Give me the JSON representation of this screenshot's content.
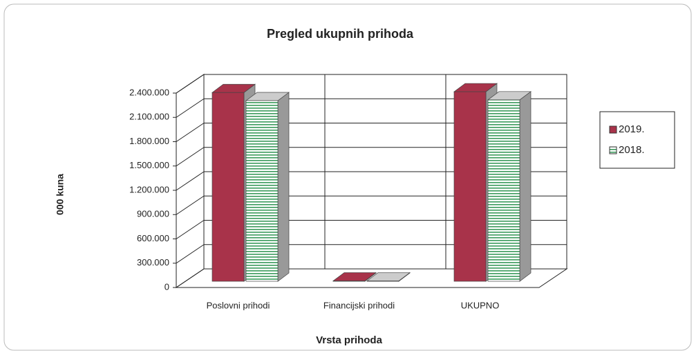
{
  "chart_data": {
    "type": "bar3d",
    "title": "Pregled ukupnih prihoda",
    "ylabel": "000 kuna",
    "xlabel": "Vrsta prihoda",
    "categories": [
      "Poslovni prihodi",
      "Financijski prihodi",
      "UKUPNO"
    ],
    "series": [
      {
        "name": "2019.",
        "color": "#a8334a",
        "values": [
          2330000,
          5000,
          2340000
        ]
      },
      {
        "name": "2018.",
        "color": "#3a9a5b",
        "pattern": "stripes",
        "values": [
          2230000,
          5000,
          2240000
        ]
      }
    ],
    "ylim": [
      0,
      2400000
    ],
    "yticks": [
      0,
      {
        "value": 300000,
        "label": "300.000"
      },
      {
        "value": 600000,
        "label": "600.000"
      },
      {
        "value": 900000,
        "label": "900.000"
      },
      {
        "value": 1200000,
        "label": "1.200.000"
      },
      {
        "value": 1500000,
        "label": "1.500.000"
      },
      {
        "value": 1800000,
        "label": "1.800.000"
      },
      {
        "value": 2100000,
        "label": "2.100.000"
      },
      {
        "value": 2400000,
        "label": "2.400.000"
      }
    ],
    "grid": true,
    "legend": "right"
  }
}
